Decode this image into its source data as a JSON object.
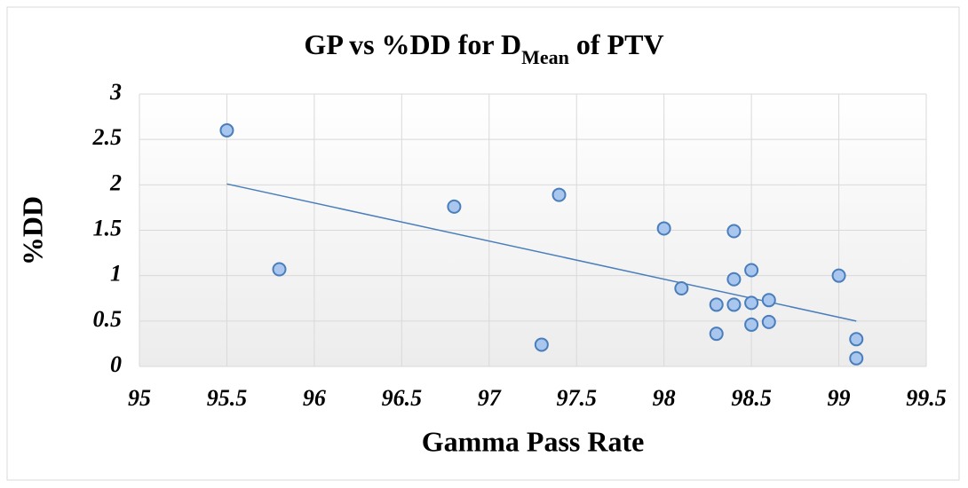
{
  "chart_data": {
    "type": "scatter",
    "title": "GP vs %DD for D",
    "title_subscript": "Mean",
    "title_suffix": " of PTV",
    "x_label": "Gamma Pass Rate",
    "y_label": "%DD",
    "x": [
      95.5,
      95.8,
      96.8,
      97.3,
      97.4,
      98.0,
      98.1,
      98.3,
      98.3,
      98.4,
      98.4,
      98.4,
      98.5,
      98.5,
      98.5,
      98.6,
      98.6,
      99.0,
      99.1,
      99.1
    ],
    "values": [
      2.6,
      1.07,
      1.76,
      0.24,
      1.89,
      1.52,
      0.86,
      0.68,
      0.36,
      1.49,
      0.96,
      0.68,
      1.06,
      0.7,
      0.46,
      0.73,
      0.49,
      1.0,
      0.3,
      0.09
    ],
    "color": "#a9c6ef",
    "edge_color": "#4a7ebb",
    "trendline": {
      "x": [
        95.5,
        99.1
      ],
      "y": [
        2.01,
        0.5
      ],
      "color": "#4a7ebb"
    },
    "xlim": [
      95,
      99.5
    ],
    "xticks": [
      95,
      95.5,
      96,
      96.5,
      97,
      97.5,
      98,
      98.5,
      99,
      99.5
    ],
    "ylim": [
      0,
      3
    ],
    "yticks": [
      0,
      0.5,
      1,
      1.5,
      2,
      2.5,
      3
    ],
    "grid": true
  }
}
